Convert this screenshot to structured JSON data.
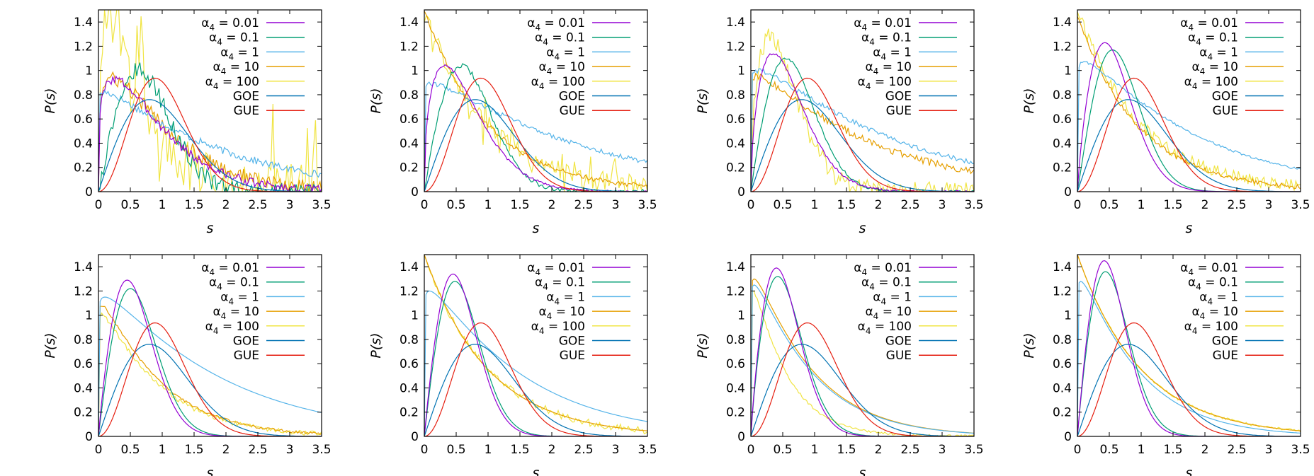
{
  "chart_data": {
    "type": "line",
    "layout": "grid-2x4",
    "xlabel": "s",
    "ylabel": "P(s)",
    "xlim": [
      0,
      3.5
    ],
    "ylim": [
      0,
      1.5
    ],
    "xticks": [
      "0",
      "0.5",
      "1",
      "1.5",
      "2",
      "2.5",
      "3",
      "3.5"
    ],
    "yticks": [
      "0",
      "0.2",
      "0.4",
      "0.6",
      "0.8",
      "1",
      "1.2",
      "1.4"
    ],
    "grid": false,
    "legend_position": "top-right",
    "series_styles": [
      {
        "name": "α4 = 0.01",
        "color": "#9400d3"
      },
      {
        "name": "α4 = 0.1",
        "color": "#009e73"
      },
      {
        "name": "α4 = 1",
        "color": "#56b4e9"
      },
      {
        "name": "α4 = 10",
        "color": "#e69f00"
      },
      {
        "name": "α4 = 100",
        "color": "#f0e442"
      },
      {
        "name": "GOE",
        "color": "#0072b2"
      },
      {
        "name": "GUE",
        "color": "#e51e10"
      }
    ],
    "legend_display": [
      {
        "pre": "α",
        "sub": "4",
        "post": " = 0.01"
      },
      {
        "pre": "α",
        "sub": "4",
        "post": " = 0.1"
      },
      {
        "pre": "α",
        "sub": "4",
        "post": " = 1"
      },
      {
        "pre": "α",
        "sub": "4",
        "post": " = 10"
      },
      {
        "pre": "α",
        "sub": "4",
        "post": " = 100"
      },
      {
        "pre": "",
        "sub": "",
        "post": "GOE"
      },
      {
        "pre": "",
        "sub": "",
        "post": "GUE"
      }
    ],
    "reference_curves": {
      "GOE": "P(s) = (π/2) s exp(-π s²/4)",
      "GUE": "P(s) = (32/π²) s² exp(-4 s²/π)"
    },
    "panels": [
      {
        "alpha_peaks": [
          [
            0.25,
            0.93
          ],
          [
            0.62,
            1.0
          ],
          [
            0.1,
            0.82
          ],
          [
            0.22,
            0.93
          ],
          [
            0.15,
            1.45
          ]
        ],
        "noise": [
          0.04,
          0.07,
          0.03,
          0.06,
          0.45
        ]
      },
      {
        "alpha_peaks": [
          [
            0.32,
            1.04
          ],
          [
            0.58,
            1.04
          ],
          [
            0.13,
            0.89
          ],
          [
            0.02,
            1.5
          ],
          [
            0.02,
            1.5
          ]
        ],
        "noise": [
          0.01,
          0.02,
          0.02,
          0.02,
          0.15
        ]
      },
      {
        "alpha_peaks": [
          [
            0.35,
            1.14
          ],
          [
            0.55,
            1.1
          ],
          [
            0.12,
            1.0
          ],
          [
            0.1,
            0.95
          ],
          [
            0.3,
            1.28
          ]
        ],
        "noise": [
          0.01,
          0.01,
          0.02,
          0.03,
          0.08
        ]
      },
      {
        "alpha_peaks": [
          [
            0.43,
            1.23
          ],
          [
            0.55,
            1.17
          ],
          [
            0.1,
            1.07
          ],
          [
            0.05,
            1.45
          ],
          [
            0.02,
            1.5
          ]
        ],
        "noise": [
          0.0,
          0.0,
          0.01,
          0.02,
          0.05
        ]
      },
      {
        "alpha_peaks": [
          [
            0.45,
            1.29
          ],
          [
            0.5,
            1.22
          ],
          [
            0.1,
            1.15
          ],
          [
            0.05,
            1.08
          ],
          [
            0.05,
            1.0
          ]
        ],
        "noise": [
          0.0,
          0.0,
          0.0,
          0.01,
          0.02
        ]
      },
      {
        "alpha_peaks": [
          [
            0.45,
            1.34
          ],
          [
            0.48,
            1.28
          ],
          [
            0.08,
            1.2
          ],
          [
            0.03,
            1.5
          ],
          [
            0.02,
            1.5
          ]
        ],
        "noise": [
          0.0,
          0.0,
          0.0,
          0.0,
          0.03
        ]
      },
      {
        "alpha_peaks": [
          [
            0.4,
            1.39
          ],
          [
            0.42,
            1.32
          ],
          [
            0.05,
            1.25
          ],
          [
            0.05,
            1.3
          ],
          [
            0.03,
            1.2
          ]
        ],
        "noise": [
          0.0,
          0.0,
          0.0,
          0.0,
          0.01
        ]
      },
      {
        "alpha_peaks": [
          [
            0.42,
            1.45
          ],
          [
            0.44,
            1.36
          ],
          [
            0.05,
            1.28
          ],
          [
            0.03,
            1.5
          ],
          [
            0.02,
            1.5
          ]
        ],
        "noise": [
          0.0,
          0.0,
          0.0,
          0.0,
          0.01
        ]
      }
    ]
  }
}
